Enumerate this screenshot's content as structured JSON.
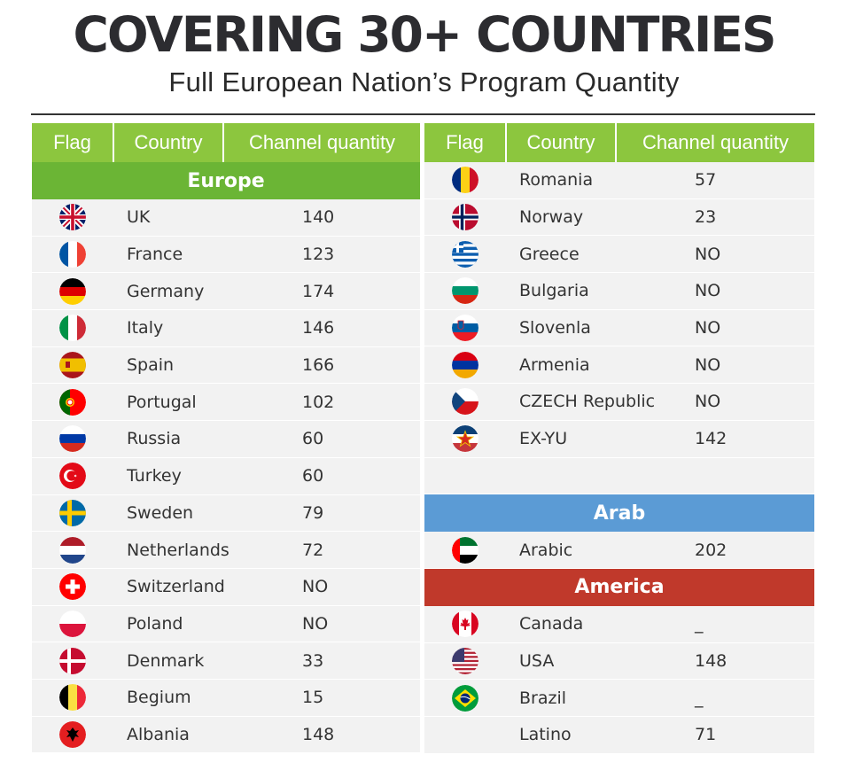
{
  "title": "COVERING 30+ COUNTRIES",
  "subtitle": "Full European Nation’s Program Quantity",
  "headers": {
    "flag": "Flag",
    "country": "Country",
    "channels": "Channel quantity"
  },
  "sections": {
    "europe": {
      "label": "Europe",
      "color": "#6bb535"
    },
    "arab": {
      "label": "Arab",
      "color": "#5b9bd5"
    },
    "america": {
      "label": "America",
      "color": "#c0392b"
    }
  },
  "left_rows": [
    {
      "country": "UK",
      "channels": "140",
      "flag": "uk-flag-icon"
    },
    {
      "country": "France",
      "channels": "123",
      "flag": "france-flag-icon"
    },
    {
      "country": "Germany",
      "channels": "174",
      "flag": "germany-flag-icon"
    },
    {
      "country": "Italy",
      "channels": "146",
      "flag": "italy-flag-icon"
    },
    {
      "country": "Spain",
      "channels": "166",
      "flag": "spain-flag-icon"
    },
    {
      "country": "Portugal",
      "channels": "102",
      "flag": "portugal-flag-icon"
    },
    {
      "country": "Russia",
      "channels": "60",
      "flag": "russia-flag-icon"
    },
    {
      "country": "Turkey",
      "channels": "60",
      "flag": "turkey-flag-icon"
    },
    {
      "country": "Sweden",
      "channels": "79",
      "flag": "sweden-flag-icon"
    },
    {
      "country": "Netherlands",
      "channels": "72",
      "flag": "netherlands-flag-icon"
    },
    {
      "country": "Switzerland",
      "channels": "NO",
      "flag": "switzerland-flag-icon"
    },
    {
      "country": "Poland",
      "channels": "NO",
      "flag": "poland-flag-icon"
    },
    {
      "country": "Denmark",
      "channels": "33",
      "flag": "denmark-flag-icon"
    },
    {
      "country": "Begium",
      "channels": "15",
      "flag": "belgium-flag-icon"
    },
    {
      "country": "Albania",
      "channels": "148",
      "flag": "albania-flag-icon"
    }
  ],
  "right_rows": [
    {
      "country": "Romania",
      "channels": "57",
      "flag": "romania-flag-icon"
    },
    {
      "country": "Norway",
      "channels": "23",
      "flag": "norway-flag-icon"
    },
    {
      "country": "Greece",
      "channels": "NO",
      "flag": "greece-flag-icon"
    },
    {
      "country": "Bulgaria",
      "channels": "NO",
      "flag": "bulgaria-flag-icon"
    },
    {
      "country": "Slovenla",
      "channels": "NO",
      "flag": "slovenia-flag-icon"
    },
    {
      "country": "Armenia",
      "channels": "NO",
      "flag": "armenia-flag-icon"
    },
    {
      "country": "CZECH Republic",
      "channels": "NO",
      "flag": "czech-flag-icon"
    },
    {
      "country": "EX-YU",
      "channels": "142",
      "flag": "yugoslavia-flag-icon"
    }
  ],
  "arab_rows": [
    {
      "country": "Arabic",
      "channels": "202",
      "flag": "uae-flag-icon"
    }
  ],
  "america_rows": [
    {
      "country": "Canada",
      "channels": "_",
      "flag": "canada-flag-icon"
    },
    {
      "country": "USA",
      "channels": "148",
      "flag": "usa-flag-icon"
    },
    {
      "country": "Brazil",
      "channels": "_",
      "flag": "brazil-flag-icon"
    },
    {
      "country": "Latino",
      "channels": "71",
      "flag": ""
    }
  ],
  "colors": {
    "header_green": "#8cc63e",
    "row_bg": "#f2f2f2"
  }
}
